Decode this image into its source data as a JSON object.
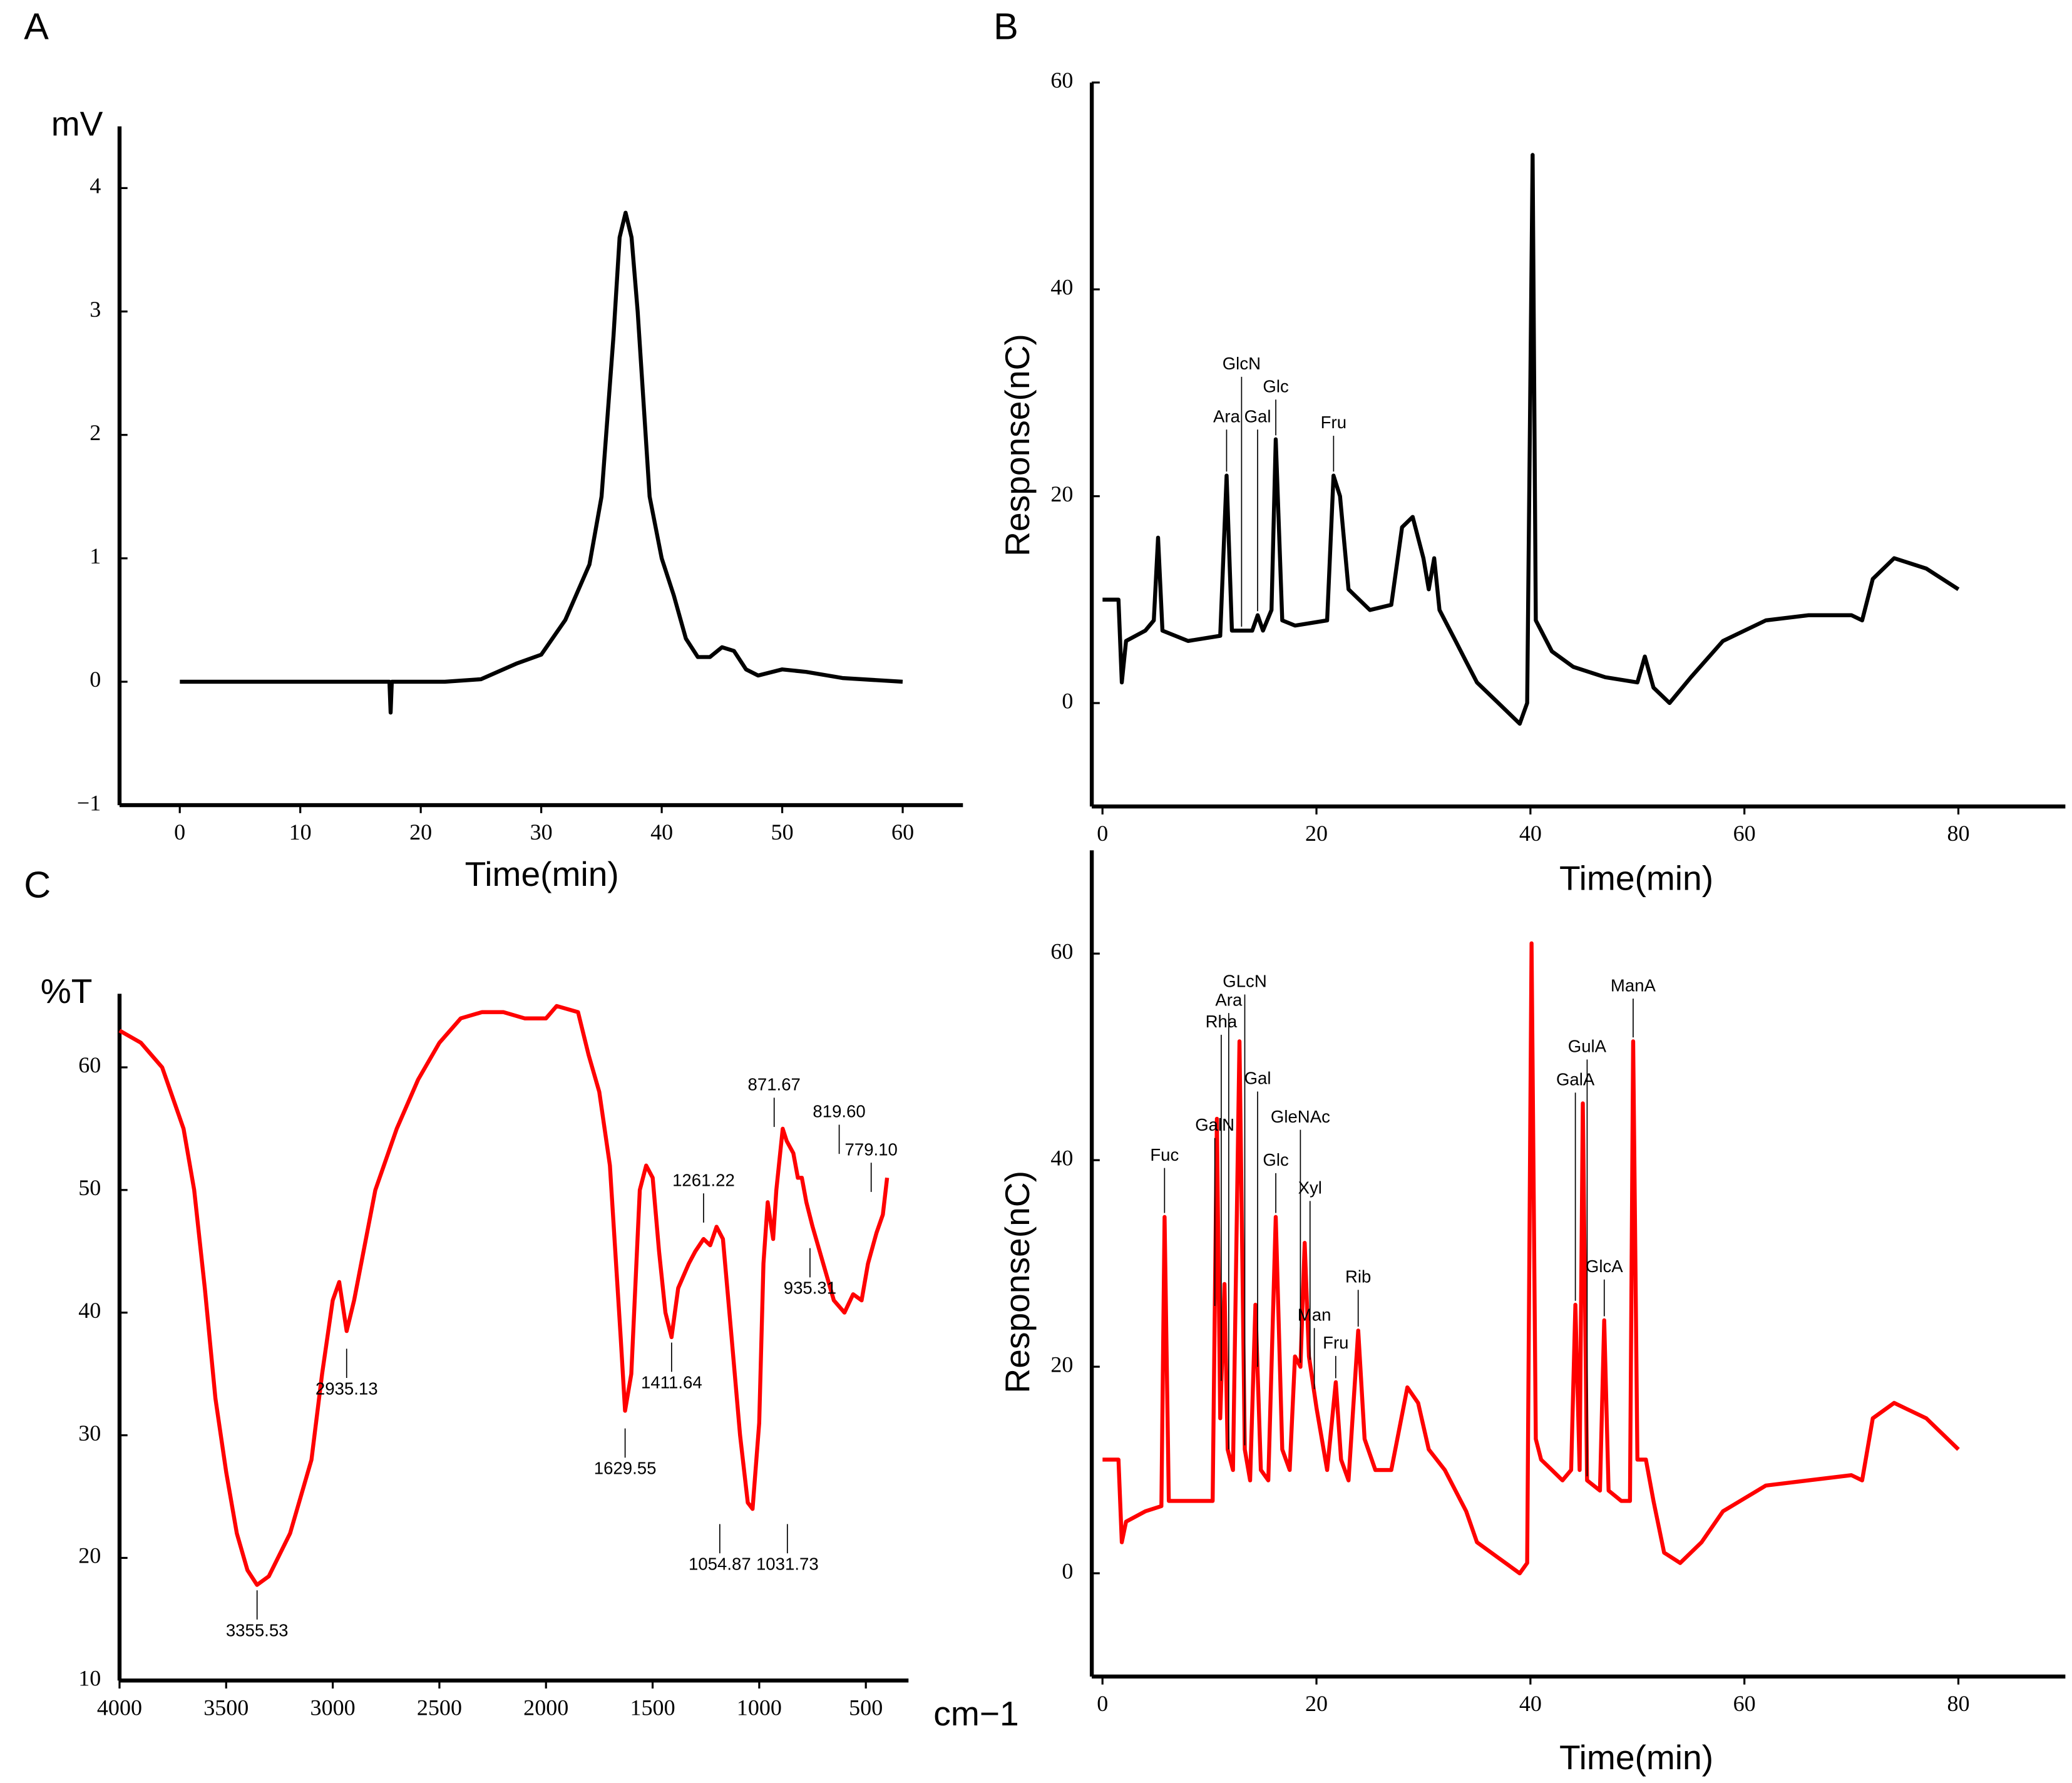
{
  "chart_data": [
    {
      "type": "line",
      "panel": "A",
      "xlabel": "Time(min)",
      "ylabel": "mV",
      "x": [
        0,
        5,
        10,
        15,
        17.4,
        17.5,
        17.6,
        20,
        22,
        25,
        28,
        30,
        32,
        34,
        35,
        36,
        36.5,
        37,
        37.5,
        38,
        39,
        40,
        41,
        42,
        43,
        44,
        45,
        46,
        47,
        48,
        50,
        52,
        55,
        60
      ],
      "series": [
        {
          "color": "#000000",
          "values": [
            0,
            0,
            0,
            0,
            0,
            -0.25,
            0,
            0,
            0,
            0.02,
            0.15,
            0.22,
            0.5,
            0.95,
            1.5,
            2.8,
            3.6,
            3.8,
            3.6,
            3.0,
            1.5,
            1.0,
            0.7,
            0.35,
            0.2,
            0.2,
            0.28,
            0.25,
            0.1,
            0.05,
            0.1,
            0.08,
            0.03,
            0
          ]
        }
      ],
      "xlim": [
        -5,
        65
      ],
      "xticks": [
        0,
        10,
        20,
        30,
        40,
        50,
        60
      ],
      "ylim": [
        -1,
        4.5
      ],
      "yticks": [
        {
          "value": -1,
          "label": "−1"
        },
        0,
        1,
        2,
        3,
        4
      ]
    },
    {
      "type": "line",
      "panel": "B",
      "xlabel": "Time(min)",
      "ylabel": "Response(nC)",
      "x": [
        0,
        1.5,
        1.8,
        2.2,
        4,
        4.8,
        5.2,
        5.6,
        8,
        11,
        11.6,
        12.1,
        14,
        14.5,
        15,
        15.8,
        16.2,
        16.8,
        18,
        21,
        21.6,
        22.2,
        23,
        25,
        27,
        28,
        29,
        30,
        30.5,
        31,
        31.5,
        33,
        34,
        35,
        37,
        39,
        39.7,
        40.2,
        40.5,
        41,
        42,
        44,
        47,
        50,
        50.7,
        51.5,
        53,
        55,
        58,
        62,
        66,
        70,
        71,
        72,
        74,
        77,
        80
      ],
      "series": [
        {
          "color": "#000000",
          "values": [
            10,
            10,
            2,
            6,
            7,
            8,
            16,
            7,
            6,
            6.5,
            22,
            7,
            7,
            8.5,
            7,
            9,
            25.5,
            8,
            7.5,
            8,
            22,
            20,
            11,
            9,
            9.5,
            17,
            18,
            14,
            11,
            14,
            9,
            6,
            4,
            2,
            0,
            -2,
            0,
            53,
            8,
            7,
            5,
            3.5,
            2.5,
            2,
            4.5,
            1.5,
            0,
            2.5,
            6,
            8,
            8.5,
            8.5,
            8,
            12,
            14,
            13,
            11
          ]
        }
      ],
      "annotations": [
        {
          "text": "Ara",
          "x": 11.6,
          "y": 27.6
        },
        {
          "text": "GlcN",
          "x": 13,
          "y": 32.7
        },
        {
          "text": "Gal",
          "x": 14.5,
          "y": 27.6
        },
        {
          "text": "Glc",
          "x": 16.2,
          "y": 30.5
        },
        {
          "text": "Fru",
          "x": 21.6,
          "y": 27
        }
      ],
      "xlim": [
        -1,
        90
      ],
      "xticks": [
        0,
        20,
        40,
        60,
        80
      ],
      "ylim": [
        -10,
        60
      ],
      "yticks": [
        0,
        20,
        40,
        60
      ]
    },
    {
      "type": "line",
      "panel": "C",
      "xlabel": "cm−1",
      "ylabel": "%T",
      "x": [
        4000,
        3900,
        3800,
        3700,
        3650,
        3600,
        3550,
        3500,
        3450,
        3400,
        3355,
        3300,
        3200,
        3100,
        3050,
        3000,
        2970,
        2935,
        2900,
        2800,
        2700,
        2600,
        2500,
        2400,
        2300,
        2200,
        2100,
        2000,
        1950,
        1850,
        1800,
        1750,
        1700,
        1650,
        1629,
        1600,
        1560,
        1530,
        1500,
        1470,
        1440,
        1411,
        1380,
        1330,
        1300,
        1261,
        1230,
        1200,
        1170,
        1130,
        1090,
        1054,
        1031,
        1000,
        980,
        960,
        935,
        920,
        890,
        871,
        840,
        819,
        800,
        779,
        750,
        700,
        650,
        600,
        560,
        520,
        490,
        450,
        420,
        400
      ],
      "series": [
        {
          "color": "#ff0000",
          "values": [
            63,
            62,
            60,
            55,
            50,
            42,
            33,
            27,
            22,
            19,
            17.8,
            18.5,
            22,
            28,
            35,
            41,
            42.5,
            38.5,
            41,
            50,
            55,
            59,
            62,
            64,
            64.5,
            64.5,
            64,
            64,
            65,
            64.5,
            61,
            58,
            52,
            38,
            32,
            35,
            50,
            52,
            51,
            45,
            40,
            38,
            42,
            44,
            45,
            46,
            45.5,
            47,
            46,
            38,
            30,
            24.5,
            24,
            31,
            44,
            49,
            46,
            50,
            55,
            54,
            53,
            51,
            51,
            49,
            47,
            44,
            41,
            40,
            41.5,
            41,
            44,
            46.5,
            48,
            51
          ]
        }
      ],
      "annotations": [
        {
          "text": "3355.53",
          "x": 3355,
          "y": 14
        },
        {
          "text": "2935.13",
          "x": 2935,
          "y": 33.7
        },
        {
          "text": "1629.55",
          "x": 1629,
          "y": 27.2
        },
        {
          "text": "1411.64",
          "x": 1411,
          "y": 34.2
        },
        {
          "text": "1261.22",
          "x": 1261,
          "y": 50.7
        },
        {
          "text": "1054.87",
          "x": 1185,
          "y": 19.4
        },
        {
          "text": "1031.73",
          "x": 868,
          "y": 19.4
        },
        {
          "text": "935.31",
          "x": 762,
          "y": 41.9
        },
        {
          "text": "871.67",
          "x": 930,
          "y": 58.5
        },
        {
          "text": "819.60",
          "x": 625,
          "y": 56.3
        },
        {
          "text": "779.10",
          "x": 475,
          "y": 53.2
        }
      ],
      "xlim": [
        4000,
        300
      ],
      "xticks": [
        4000,
        3500,
        3000,
        2500,
        2000,
        1500,
        1000,
        500
      ],
      "ylim": [
        10,
        66
      ],
      "yticks": [
        10,
        20,
        30,
        40,
        50,
        60
      ]
    },
    {
      "type": "line",
      "xlabel": "Time(min)",
      "ylabel": "Response(nC)",
      "x": [
        0,
        1.5,
        1.8,
        2.2,
        4,
        5.5,
        5.8,
        6.2,
        8,
        10.3,
        10.7,
        11,
        11.4,
        11.7,
        12.2,
        12.8,
        13.3,
        13.8,
        14.3,
        14.8,
        15.5,
        16.2,
        16.8,
        17.5,
        18,
        18.5,
        18.9,
        19.3,
        20,
        21,
        21.8,
        22.3,
        23,
        23.9,
        24.5,
        25.5,
        27,
        28.5,
        29.5,
        30.5,
        32,
        34,
        35,
        37,
        39,
        39.7,
        40.1,
        40.5,
        41,
        42,
        43,
        43.8,
        44.2,
        44.6,
        44.9,
        45.3,
        46.5,
        46.9,
        47.3,
        48.5,
        49.3,
        49.6,
        50,
        50.8,
        51.5,
        52.5,
        54,
        56,
        58,
        62,
        66,
        70,
        71,
        72,
        74,
        77,
        80
      ],
      "series": [
        {
          "color": "#ff0000",
          "values": [
            11,
            11,
            3,
            5,
            6,
            6.5,
            34.5,
            7,
            7,
            7,
            44,
            15,
            28,
            12,
            10,
            51.5,
            12,
            9,
            26,
            10,
            9,
            34.5,
            12,
            10,
            21,
            20,
            32,
            21,
            16,
            10,
            18.5,
            11,
            9,
            23.5,
            13,
            10,
            10,
            18,
            16.5,
            12,
            10,
            6,
            3,
            1.5,
            0,
            1,
            61,
            13,
            11,
            10,
            9,
            10,
            26,
            10,
            45.5,
            9,
            8,
            24.5,
            8,
            7,
            7,
            51.5,
            11,
            11,
            7,
            2,
            1,
            3,
            6,
            8.5,
            9,
            9.5,
            9,
            15,
            16.5,
            15,
            12
          ]
        }
      ],
      "annotations": [
        {
          "text": "Fuc",
          "x": 5.8,
          "y": 40.4
        },
        {
          "text": "GalN",
          "x": 10.5,
          "y": 43.3
        },
        {
          "text": "Rha",
          "x": 11.1,
          "y": 53.3
        },
        {
          "text": "Ara",
          "x": 11.8,
          "y": 55.4
        },
        {
          "text": "GLcN",
          "x": 13.3,
          "y": 57.2
        },
        {
          "text": "Gal",
          "x": 14.5,
          "y": 47.8
        },
        {
          "text": "GleNAc",
          "x": 18.5,
          "y": 44.1
        },
        {
          "text": "Glc",
          "x": 16.2,
          "y": 39.9
        },
        {
          "text": "Xyl",
          "x": 19.4,
          "y": 37.2
        },
        {
          "text": "Rib",
          "x": 23.9,
          "y": 28.6
        },
        {
          "text": "Man",
          "x": 19.8,
          "y": 24.9
        },
        {
          "text": "Fru",
          "x": 21.8,
          "y": 22.2
        },
        {
          "text": "GalA",
          "x": 44.2,
          "y": 47.7
        },
        {
          "text": "GulA",
          "x": 45.3,
          "y": 50.9
        },
        {
          "text": "GlcA",
          "x": 46.9,
          "y": 29.6
        },
        {
          "text": "ManA",
          "x": 49.6,
          "y": 56.8
        }
      ],
      "xlim": [
        -1,
        90
      ],
      "xticks": [
        0,
        20,
        40,
        60,
        80
      ],
      "ylim": [
        -10,
        70
      ],
      "yticks": [
        0,
        20,
        40,
        60
      ]
    }
  ]
}
